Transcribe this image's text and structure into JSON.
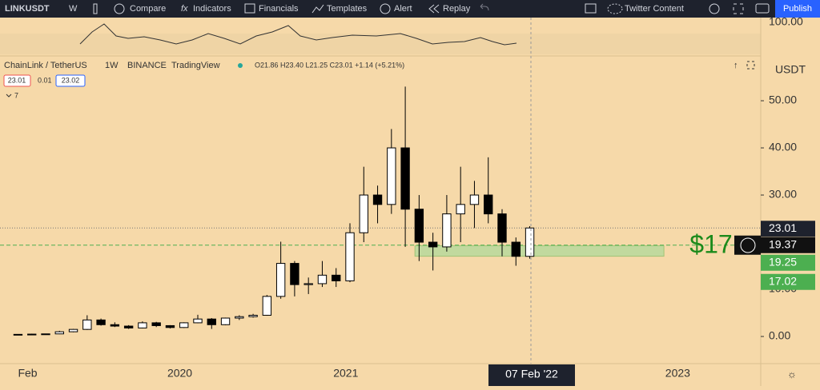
{
  "toolbar": {
    "symbol": "LINKUSDT",
    "interval": "W",
    "compare": "Compare",
    "indicators": "Indicators",
    "financials": "Financials",
    "templates": "Templates",
    "alert": "Alert",
    "replay": "Replay",
    "layout": "Twitter Content",
    "publish": "Publish"
  },
  "indicator": {
    "level": "100.00"
  },
  "legend": {
    "pair": "ChainLink / TetherUS",
    "interval": "1W",
    "exchange": "BINANCE",
    "source": "TradingView",
    "ohlc": "O21.86 H23.40 L21.25 C23.01 +1.14 (+5.21%)",
    "bid": "23.01",
    "spread": "0.01",
    "ask": "23.02",
    "indicators_count": "7"
  },
  "annotation": "$17",
  "chart_data": {
    "type": "candlestick",
    "unit": "USDT",
    "x": [
      "2019-01",
      "2019-02",
      "2019-03",
      "2019-04",
      "2019-05",
      "2019-06",
      "2019-07",
      "2019-08",
      "2019-09",
      "2019-10",
      "2019-11",
      "2019-12",
      "2020-01",
      "2020-02",
      "2020-03",
      "2020-04",
      "2020-05",
      "2020-06",
      "2020-07",
      "2020-08",
      "2020-09",
      "2020-10",
      "2020-11",
      "2020-12",
      "2021-01",
      "2021-02",
      "2021-03",
      "2021-04",
      "2021-05",
      "2021-06",
      "2021-07",
      "2021-08",
      "2021-09",
      "2021-10",
      "2021-11",
      "2021-12",
      "2022-01",
      "2022-02"
    ],
    "open": [
      0.4,
      0.45,
      0.5,
      0.55,
      1.0,
      1.5,
      3.5,
      2.5,
      2.2,
      1.8,
      2.9,
      2.3,
      1.9,
      2.9,
      3.7,
      2.5,
      3.9,
      4.2,
      4.5,
      8.5,
      15.5,
      11.0,
      11.2,
      13.0,
      11.8,
      22,
      30,
      28,
      40,
      27,
      20,
      19,
      26,
      28,
      30,
      26,
      20,
      17
    ],
    "high": [
      0.5,
      0.6,
      0.6,
      1.2,
      1.6,
      4.5,
      3.8,
      3.0,
      2.4,
      3.2,
      3.1,
      2.4,
      3.0,
      4.6,
      3.9,
      4.0,
      4.5,
      4.8,
      8.8,
      20.1,
      16.0,
      12.5,
      16.0,
      14.5,
      24,
      36,
      32,
      44,
      53,
      30,
      22,
      30,
      36,
      33,
      38,
      27,
      21,
      23.4
    ],
    "low": [
      0.35,
      0.4,
      0.45,
      0.5,
      0.9,
      1.4,
      2.3,
      2.0,
      1.6,
      1.7,
      2.0,
      1.7,
      1.8,
      2.8,
      1.6,
      2.4,
      3.5,
      4.0,
      4.4,
      8.0,
      8.5,
      9.0,
      10.5,
      10.5,
      11.5,
      20,
      24,
      26,
      19,
      16,
      14,
      18,
      20,
      23,
      24,
      17,
      15,
      16.5
    ],
    "close": [
      0.45,
      0.5,
      0.55,
      1.0,
      1.5,
      3.5,
      2.5,
      2.2,
      1.8,
      2.9,
      2.3,
      1.9,
      2.9,
      3.7,
      2.5,
      3.9,
      4.2,
      4.5,
      8.5,
      15.5,
      11.0,
      11.2,
      13.0,
      11.8,
      22,
      30,
      28,
      40,
      27,
      20,
      19,
      26,
      28,
      30,
      26,
      20,
      17,
      23.01
    ],
    "xlim": [
      "2018-12",
      "2023-07"
    ],
    "xticks": [
      {
        "value": "2019-02",
        "label": "Feb"
      },
      {
        "value": "2020-01",
        "label": "2020"
      },
      {
        "value": "2021-01",
        "label": "2021"
      },
      {
        "value": "2023-01",
        "label": "2023"
      }
    ],
    "cursor_label": "07 Feb '22",
    "ylim": [
      -5.76,
      59.5
    ],
    "yticks": [
      {
        "value": 0,
        "label": "0.00"
      },
      {
        "value": 10,
        "label": "10.00"
      },
      {
        "value": 30,
        "label": "30.00"
      },
      {
        "value": 40,
        "label": "40.00"
      },
      {
        "value": 50,
        "label": "50.00"
      }
    ],
    "last_price": {
      "value": 23.01,
      "label": "23.01"
    },
    "line_price": {
      "value": 19.37,
      "label": "19.37"
    },
    "zone": [
      {
        "value": 19.25,
        "label": "19.25"
      },
      {
        "value": 17.02,
        "label": "17.02"
      }
    ],
    "up_color": "#ffffff",
    "down_color": "#000000",
    "zone_color": "#b5d99c"
  }
}
